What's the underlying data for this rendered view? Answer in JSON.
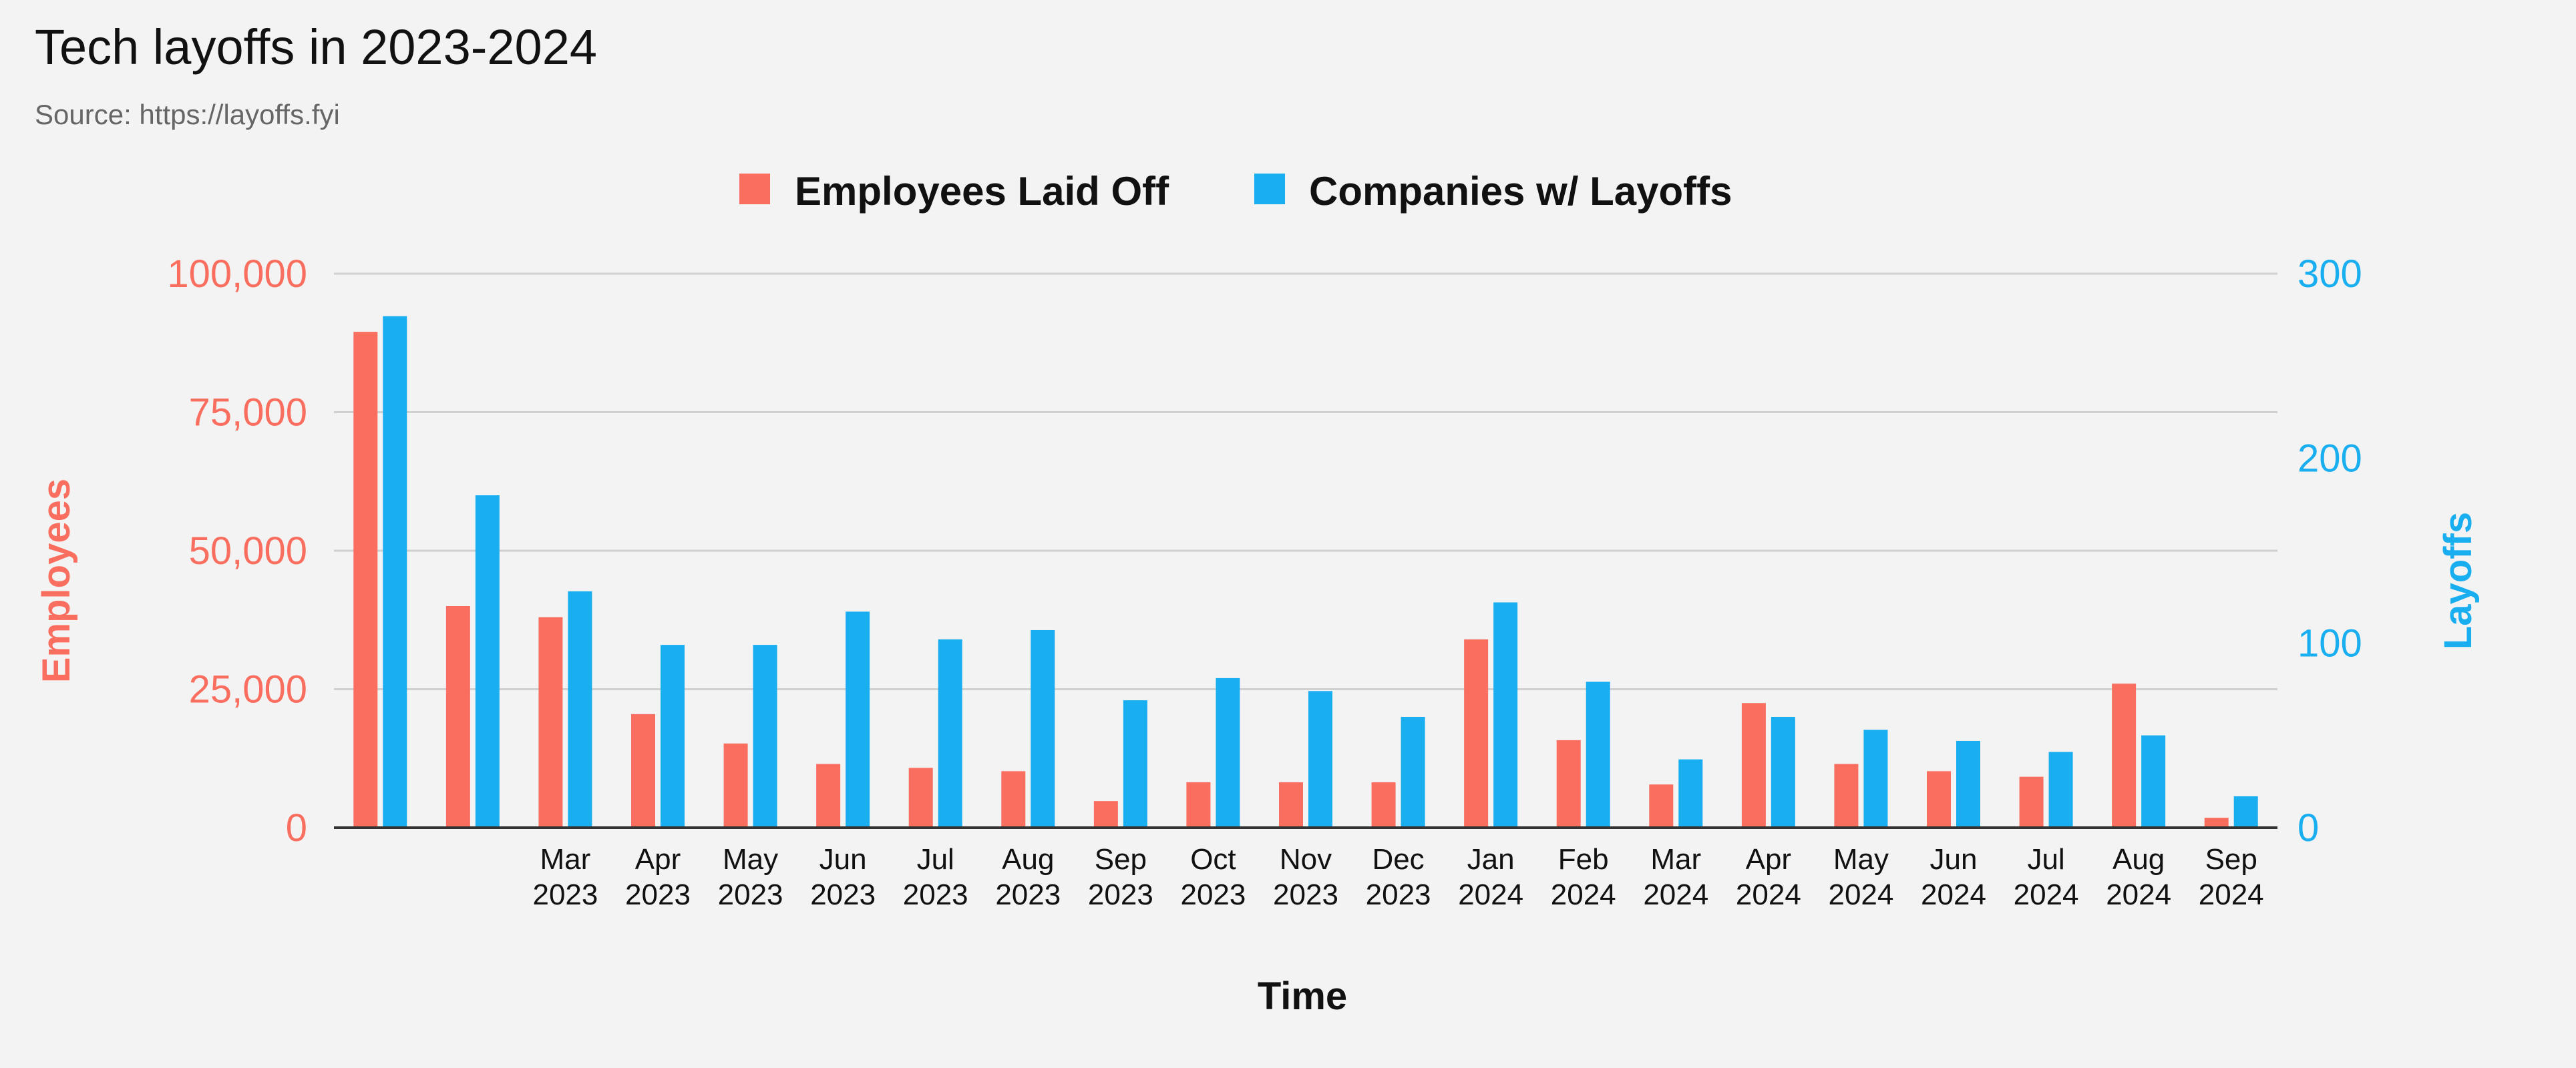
{
  "header": {
    "title": "Tech layoffs in 2023-2024",
    "subtitle": "Source: https://layoffs.fyi"
  },
  "colors": {
    "employees": "#fa6e5f",
    "companies": "#19aef0",
    "grid": "#d0d0d0",
    "axis": "#333333"
  },
  "chart_data": {
    "type": "bar",
    "title": "Tech layoffs in 2023-2024",
    "subtitle": "Source: https://layoffs.fyi",
    "xlabel": "Time",
    "legend_position": "top-center",
    "grid": true,
    "categories": [
      [
        "",
        ""
      ],
      [
        "",
        ""
      ],
      [
        "Mar",
        "2023"
      ],
      [
        "Apr",
        "2023"
      ],
      [
        "May",
        "2023"
      ],
      [
        "Jun",
        "2023"
      ],
      [
        "Jul",
        "2023"
      ],
      [
        "Aug",
        "2023"
      ],
      [
        "Sep",
        "2023"
      ],
      [
        "Oct",
        "2023"
      ],
      [
        "Nov",
        "2023"
      ],
      [
        "Dec",
        "2023"
      ],
      [
        "Jan",
        "2024"
      ],
      [
        "Feb",
        "2024"
      ],
      [
        "Mar",
        "2024"
      ],
      [
        "Apr",
        "2024"
      ],
      [
        "May",
        "2024"
      ],
      [
        "Jun",
        "2024"
      ],
      [
        "Jul",
        "2024"
      ],
      [
        "Aug",
        "2024"
      ],
      [
        "Sep",
        "2024"
      ]
    ],
    "axes": {
      "left": {
        "label": "Employees",
        "ylim": [
          0,
          100000
        ],
        "ticks": [
          0,
          25000,
          50000,
          75000,
          100000
        ],
        "tick_labels": [
          "0",
          "25,000",
          "50,000",
          "75,000",
          "100,000"
        ]
      },
      "right": {
        "label": "Layoffs",
        "ylim": [
          0,
          300
        ],
        "ticks": [
          0,
          100,
          200,
          300
        ],
        "tick_labels": [
          "0",
          "100",
          "200",
          "300"
        ]
      }
    },
    "series": [
      {
        "name": "Employees Laid Off",
        "axis": "left",
        "values": [
          89500,
          40000,
          38000,
          20500,
          15200,
          11500,
          10800,
          10200,
          4800,
          8200,
          8200,
          8200,
          34000,
          15800,
          7800,
          22500,
          11500,
          10200,
          9200,
          26000,
          1800
        ]
      },
      {
        "name": "Companies w/ Layoffs",
        "axis": "right",
        "values": [
          277,
          180,
          128,
          99,
          99,
          117,
          102,
          107,
          69,
          81,
          74,
          60,
          122,
          79,
          37,
          60,
          53,
          47,
          41,
          50,
          17
        ]
      }
    ]
  }
}
